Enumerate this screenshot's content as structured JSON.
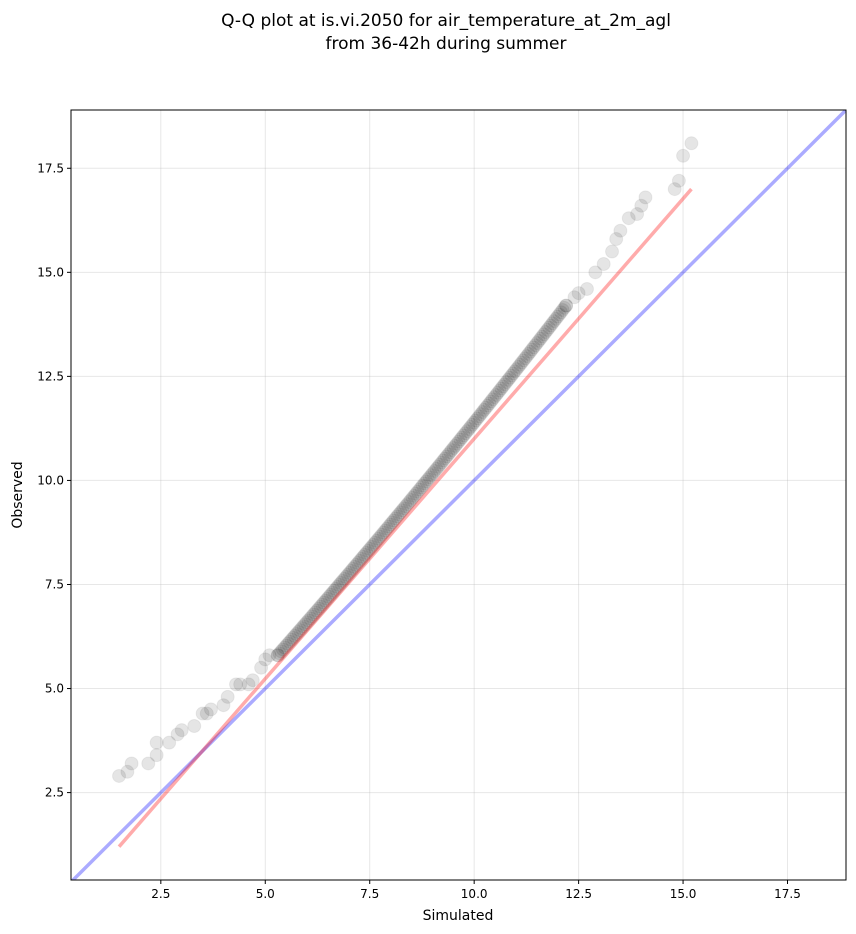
{
  "chart_data": {
    "type": "scatter",
    "title": [
      "Q-Q plot at is.vi.2050 for air_temperature_at_2m_agl",
      "from 36-42h during summer"
    ],
    "xlabel": "Simulated",
    "ylabel": "Observed",
    "xlim": [
      0.35,
      18.9
    ],
    "ylim": [
      0.4,
      18.9
    ],
    "x_ticks": [
      2.5,
      5.0,
      7.5,
      10.0,
      12.5,
      15.0,
      17.5
    ],
    "y_ticks": [
      2.5,
      5.0,
      7.5,
      10.0,
      12.5,
      15.0,
      17.5
    ],
    "x_tick_labels": [
      "2.5",
      "5.0",
      "7.5",
      "10.0",
      "12.5",
      "15.0",
      "17.5"
    ],
    "y_tick_labels": [
      "2.5",
      "5.0",
      "7.5",
      "10.0",
      "12.5",
      "15.0",
      "17.5"
    ],
    "grid": true,
    "point_color": "#000000",
    "identity_line": {
      "color": "#0000ff",
      "from": [
        0.35,
        0.35
      ],
      "to": [
        18.9,
        18.9
      ]
    },
    "fit_line": {
      "color": "#ff0000",
      "from": [
        1.5,
        1.2
      ],
      "to": [
        15.2,
        17.0
      ]
    },
    "tail_points": [
      [
        1.5,
        2.9
      ],
      [
        1.7,
        3.0
      ],
      [
        1.8,
        3.2
      ],
      [
        2.2,
        3.2
      ],
      [
        2.4,
        3.4
      ],
      [
        2.4,
        3.7
      ],
      [
        2.7,
        3.7
      ],
      [
        2.9,
        3.9
      ],
      [
        3.0,
        4.0
      ],
      [
        3.3,
        4.1
      ],
      [
        3.5,
        4.4
      ],
      [
        3.6,
        4.4
      ],
      [
        3.7,
        4.5
      ],
      [
        4.0,
        4.6
      ],
      [
        4.1,
        4.8
      ],
      [
        4.3,
        5.1
      ],
      [
        4.4,
        5.1
      ],
      [
        4.6,
        5.1
      ],
      [
        4.7,
        5.2
      ],
      [
        4.9,
        5.5
      ],
      [
        5.0,
        5.7
      ],
      [
        5.1,
        5.8
      ],
      [
        5.3,
        5.8
      ],
      [
        12.2,
        14.2
      ],
      [
        12.4,
        14.4
      ],
      [
        12.5,
        14.5
      ],
      [
        12.7,
        14.6
      ],
      [
        12.9,
        15.0
      ],
      [
        13.1,
        15.2
      ],
      [
        13.3,
        15.5
      ],
      [
        13.4,
        15.8
      ],
      [
        13.5,
        16.0
      ],
      [
        13.7,
        16.3
      ],
      [
        13.9,
        16.4
      ],
      [
        14.0,
        16.6
      ],
      [
        14.1,
        16.8
      ],
      [
        14.8,
        17.0
      ],
      [
        14.9,
        17.2
      ],
      [
        15.0,
        17.8
      ],
      [
        15.2,
        18.1
      ]
    ],
    "dense_band": {
      "x_start": 5.3,
      "x_end": 12.2,
      "y_start": 5.8,
      "y_end": 14.2,
      "count": 170
    }
  }
}
